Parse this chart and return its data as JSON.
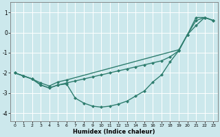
{
  "xlabel": "Humidex (Indice chaleur)",
  "xlim": [
    -0.5,
    23.5
  ],
  "ylim": [
    -4.4,
    1.5
  ],
  "yticks": [
    1,
    0,
    -1,
    -2,
    -3,
    -4
  ],
  "xticks": [
    0,
    1,
    2,
    3,
    4,
    5,
    6,
    7,
    8,
    9,
    10,
    11,
    12,
    13,
    14,
    15,
    16,
    17,
    18,
    19,
    20,
    21,
    22,
    23
  ],
  "bg_color": "#cce8ec",
  "grid_color": "#ffffff",
  "line_color": "#2e7d6e",
  "line1_x": [
    0,
    1,
    2,
    3,
    4,
    5,
    6,
    7,
    8,
    9,
    10,
    11,
    12,
    13,
    14,
    15,
    16,
    17,
    18,
    19,
    20,
    21,
    22,
    23
  ],
  "line1_y": [
    -2.0,
    -2.15,
    -2.3,
    -2.6,
    -2.75,
    -2.6,
    -2.55,
    -3.25,
    -3.5,
    -3.65,
    -3.7,
    -3.65,
    -3.55,
    -3.4,
    -3.15,
    -2.9,
    -2.45,
    -2.1,
    -1.45,
    -0.9,
    -0.1,
    0.75,
    0.75,
    0.6
  ],
  "line2_x": [
    0,
    1,
    2,
    3,
    4,
    5,
    6,
    7,
    8,
    9,
    10,
    11,
    12,
    13,
    14,
    15,
    16,
    17,
    18,
    19,
    20,
    21,
    22,
    23
  ],
  "line2_y": [
    -2.0,
    -2.15,
    -2.3,
    -2.6,
    -2.75,
    -2.6,
    -2.5,
    -2.4,
    -2.3,
    -2.2,
    -2.1,
    -2.0,
    -1.9,
    -1.8,
    -1.7,
    -1.6,
    -1.5,
    -1.4,
    -1.2,
    -0.9,
    -0.1,
    0.6,
    0.75,
    0.6
  ],
  "line3_x": [
    0,
    1,
    2,
    3,
    4,
    5,
    6,
    19,
    20,
    21,
    22,
    23
  ],
  "line3_y": [
    -2.0,
    -2.15,
    -2.3,
    -2.5,
    -2.65,
    -2.45,
    -2.35,
    -0.85,
    -0.1,
    0.35,
    0.75,
    0.6
  ],
  "marker": "D",
  "markersize": 2.5,
  "linewidth": 1.0
}
